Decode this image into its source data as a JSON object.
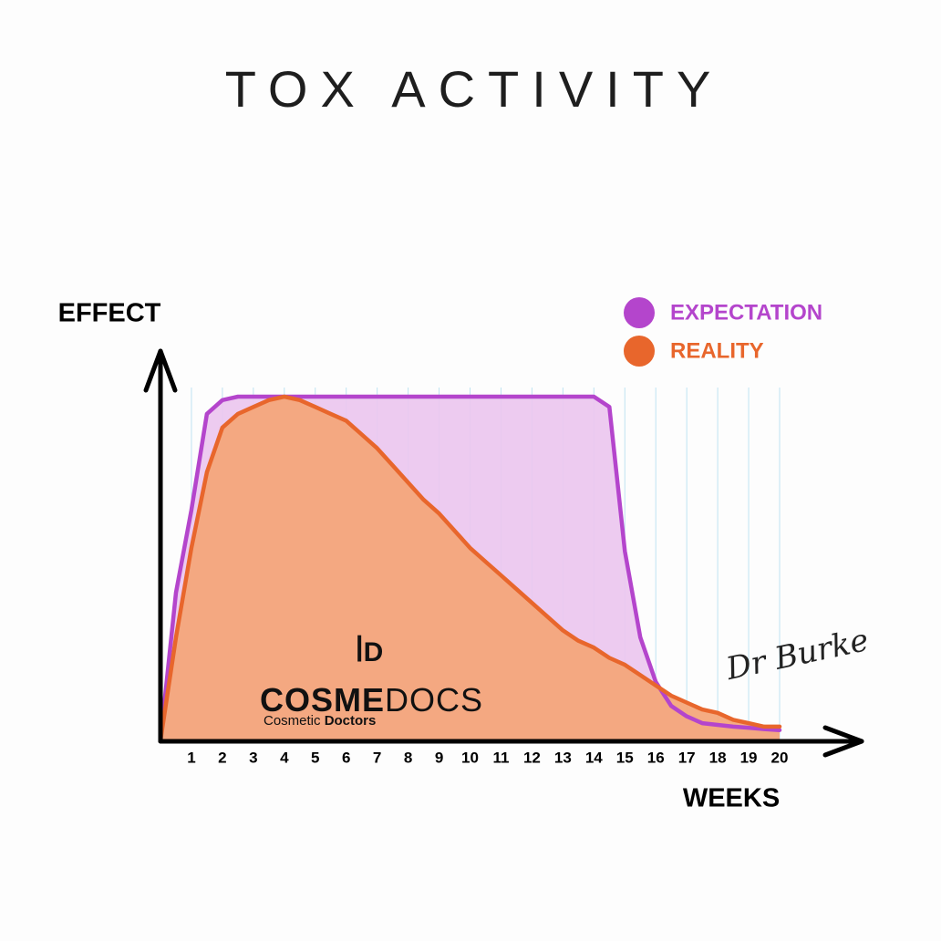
{
  "chart_data": {
    "type": "area",
    "title": "TOX ACTIVITY",
    "x_label": "WEEKS",
    "y_label": "EFFECT",
    "x": [
      0,
      0.5,
      1,
      1.5,
      2,
      2.5,
      3,
      3.5,
      4,
      4.5,
      5,
      5.5,
      6,
      6.5,
      7,
      7.5,
      8,
      8.5,
      9,
      9.5,
      10,
      10.5,
      11,
      11.5,
      12,
      12.5,
      13,
      13.5,
      14,
      14.5,
      15,
      15.5,
      16,
      16.5,
      17,
      17.5,
      18,
      18.5,
      19,
      19.5,
      20
    ],
    "series": [
      {
        "name": "EXPECTATION",
        "color": "#b445cc",
        "fill": "#ebc7ef",
        "values": [
          0,
          43,
          67,
          95,
          99,
          100,
          100,
          100,
          100,
          100,
          100,
          100,
          100,
          100,
          100,
          100,
          100,
          100,
          100,
          100,
          100,
          100,
          100,
          100,
          100,
          100,
          100,
          100,
          100,
          97,
          55,
          30,
          17,
          10,
          7,
          5,
          4.5,
          4,
          3.7,
          3.3,
          3
        ]
      },
      {
        "name": "REALITY",
        "color": "#e8662c",
        "fill": "#f4a577",
        "values": [
          0,
          30,
          56,
          78,
          91,
          95,
          97,
          99,
          100,
          99,
          97,
          95,
          93,
          89,
          85,
          80,
          75,
          70,
          66,
          61,
          56,
          52,
          48,
          44,
          40,
          36,
          32,
          29,
          27,
          24,
          22,
          19,
          16,
          13,
          11,
          9,
          8,
          6,
          5,
          4,
          4
        ]
      }
    ],
    "xlim": [
      0,
      20
    ],
    "ylim": [
      0,
      100
    ],
    "xticks": [
      1,
      2,
      3,
      4,
      5,
      6,
      7,
      8,
      9,
      10,
      11,
      12,
      13,
      14,
      15,
      16,
      17,
      18,
      19,
      20
    ],
    "grid": true,
    "annotations": {
      "brand_bold": "COSME",
      "brand_light": "DOCS",
      "tagline_light": "Cosmetic",
      "tagline_bold": "Doctors",
      "signature": "Dr Burke"
    }
  }
}
